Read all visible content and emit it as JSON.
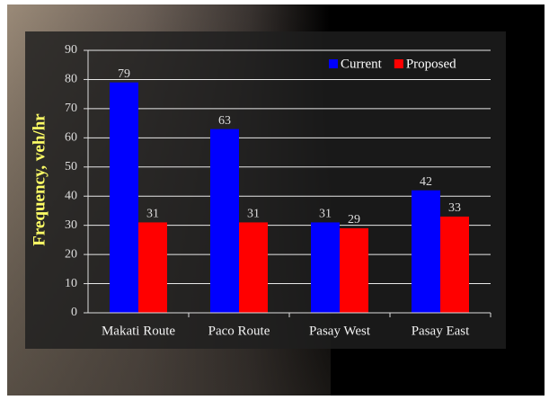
{
  "chart_data": {
    "type": "bar",
    "y_label": "Frequency, veh/hr",
    "categories": [
      "Makati Route",
      "Paco Route",
      "Pasay West",
      "Pasay East"
    ],
    "series": [
      {
        "name": "Current",
        "color": "#0000ff",
        "values": [
          79,
          63,
          31,
          42
        ]
      },
      {
        "name": "Proposed",
        "color": "#ff0000",
        "values": [
          31,
          31,
          29,
          33
        ]
      }
    ],
    "ylim": [
      0,
      90
    ],
    "yticks": [
      0,
      10,
      20,
      30,
      40,
      50,
      60,
      70,
      80,
      90
    ],
    "grid": true,
    "legend": "upper right"
  }
}
